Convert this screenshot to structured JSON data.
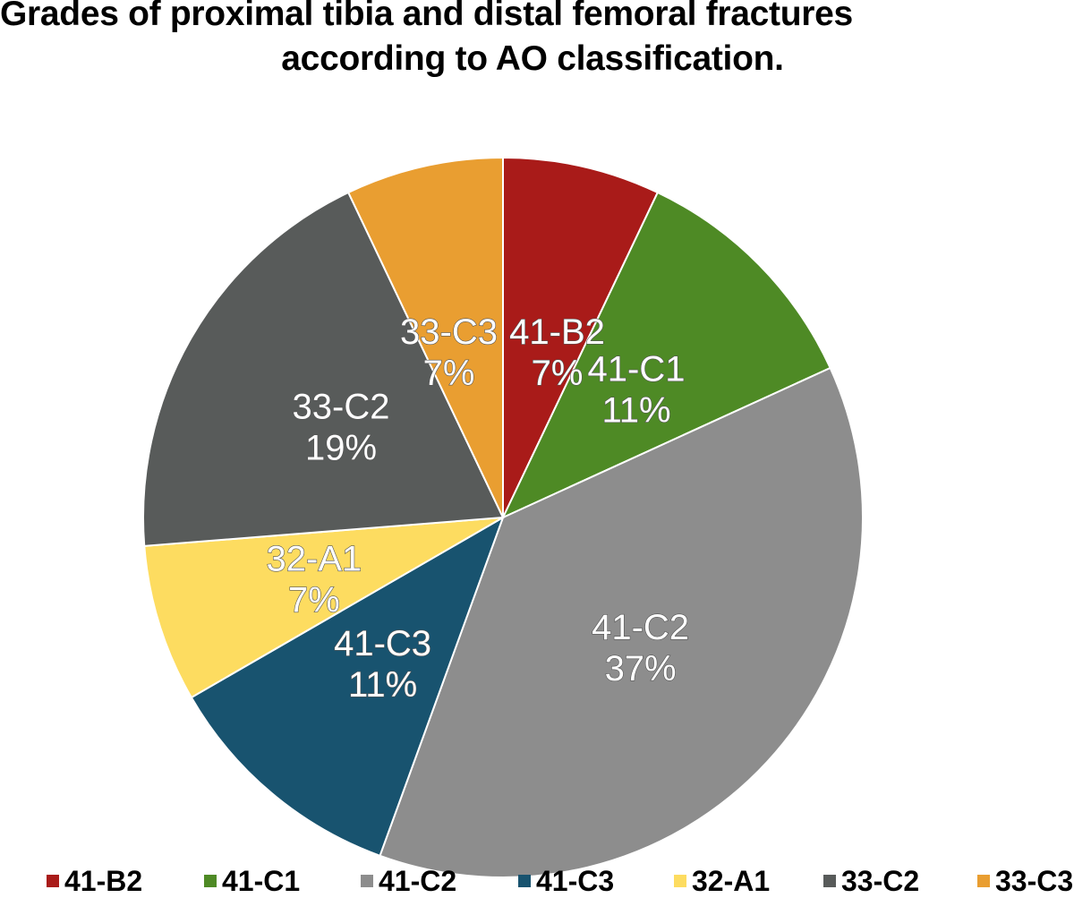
{
  "chart_data": {
    "type": "pie",
    "title_lines": [
      "Grades of proximal tibia and distal femoral fractures",
      "according to AO classification."
    ],
    "categories": [
      "41-B2",
      "41-C1",
      "41-C2",
      "41-C3",
      "32-A1",
      "33-C2",
      "33-C3"
    ],
    "values": [
      7,
      11,
      37,
      11,
      7,
      19,
      7
    ],
    "percent_labels": [
      "7%",
      "11%",
      "37%",
      "11%",
      "7%",
      "19%",
      "7%"
    ],
    "colors": [
      "#a91b19",
      "#4e8a25",
      "#8d8d8d",
      "#18536f",
      "#fddc60",
      "#585b5a",
      "#e99e31"
    ],
    "legend_position": "bottom",
    "data_labels": "category and percent inside slices"
  }
}
